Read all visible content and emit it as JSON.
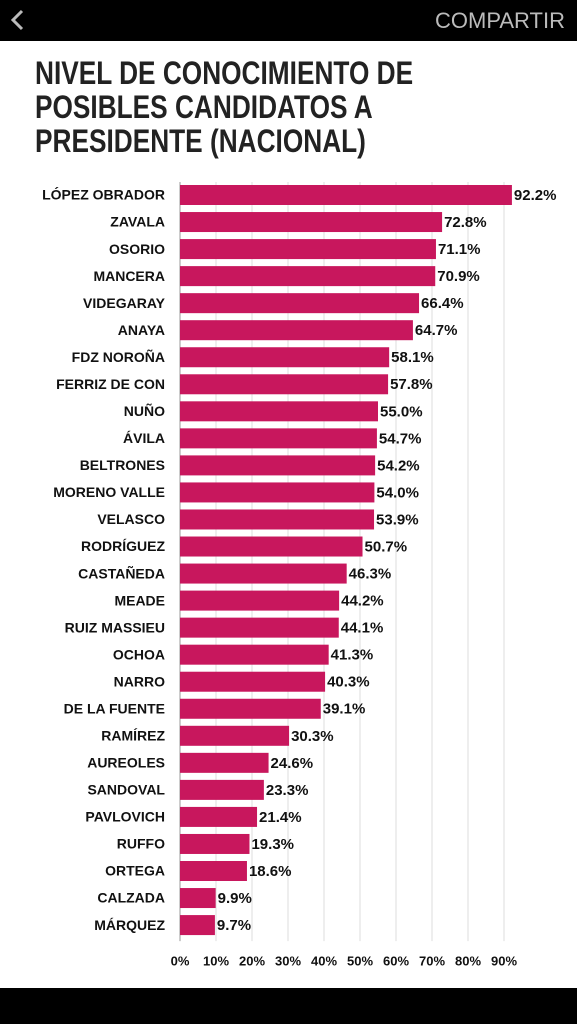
{
  "header": {
    "action": "COMPARTIR"
  },
  "chart_data": {
    "type": "hbar",
    "title": "NIVEL DE CONOCIMIENTO DE POSIBLES CANDIDATOS A PRESIDENTE (NACIONAL)",
    "categories": [
      "LÓPEZ OBRADOR",
      "ZAVALA",
      "OSORIO",
      "MANCERA",
      "VIDEGARAY",
      "ANAYA",
      "FDZ NOROÑA",
      "FERRIZ DE CON",
      "NUÑO",
      "ÁVILA",
      "BELTRONES",
      "MORENO VALLE",
      "VELASCO",
      "RODRÍGUEZ",
      "CASTAÑEDA",
      "MEADE",
      "RUIZ MASSIEU",
      "OCHOA",
      "NARRO",
      "DE LA FUENTE",
      "RAMÍREZ",
      "AUREOLES",
      "SANDOVAL",
      "PAVLOVICH",
      "RUFFO",
      "ORTEGA",
      "CALZADA",
      "MÁRQUEZ"
    ],
    "values": [
      92.2,
      72.8,
      71.1,
      70.9,
      66.4,
      64.7,
      58.1,
      57.8,
      55.0,
      54.7,
      54.2,
      54.0,
      53.9,
      50.7,
      46.3,
      44.2,
      44.1,
      41.3,
      40.3,
      39.1,
      30.3,
      24.6,
      23.3,
      21.4,
      19.3,
      18.6,
      9.9,
      9.7
    ],
    "value_labels": [
      "92.2%",
      "72.8%",
      "71.1%",
      "70.9%",
      "66.4%",
      "64.7%",
      "58.1%",
      "57.8%",
      "55.0%",
      "54.7%",
      "54.2%",
      "54.0%",
      "53.9%",
      "50.7%",
      "46.3%",
      "44.2%",
      "44.1%",
      "41.3%",
      "40.3%",
      "39.1%",
      "30.3%",
      "24.6%",
      "23.3%",
      "21.4%",
      "19.3%",
      "18.6%",
      "9.9%",
      "9.7%"
    ],
    "color": "#c8175d",
    "xlim": [
      0,
      100
    ],
    "xticks": [
      {
        "value": 0,
        "label": "0%"
      },
      {
        "value": 10,
        "label": "10%"
      },
      {
        "value": 20,
        "label": "20%"
      },
      {
        "value": 30,
        "label": "30%"
      },
      {
        "value": 40,
        "label": "40%"
      },
      {
        "value": 50,
        "label": "50%"
      },
      {
        "value": 60,
        "label": "60%"
      },
      {
        "value": 70,
        "label": "70%"
      },
      {
        "value": 80,
        "label": "80%"
      },
      {
        "value": 90,
        "label": "90%"
      }
    ],
    "grid": true
  }
}
